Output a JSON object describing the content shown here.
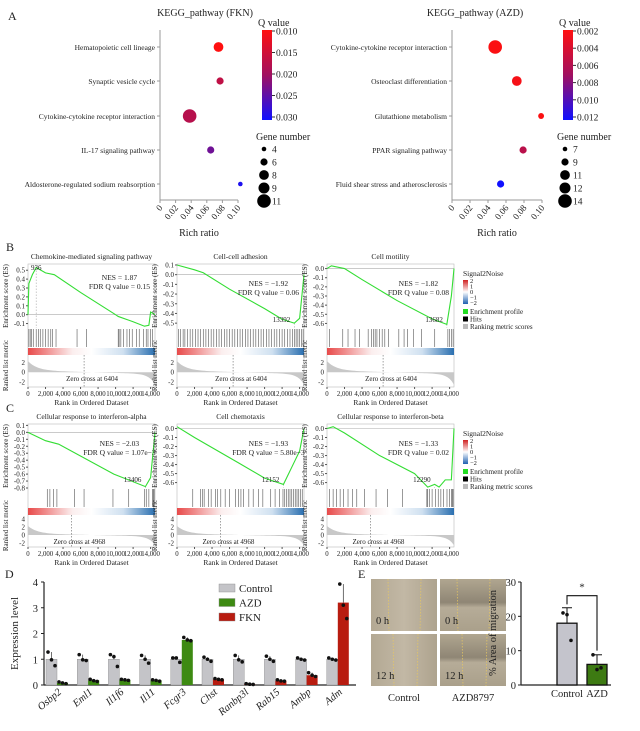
{
  "panel_labels": {
    "a": "A",
    "b": "B",
    "c": "C",
    "d": "D",
    "e": "E"
  },
  "chart_data": [
    {
      "id": "kegg_fkn",
      "type": "scatter",
      "title": "KEGG_pathway (FKN)",
      "xlabel": "Rich ratio",
      "xlim": [
        0,
        0.1
      ],
      "xticks": [
        "0",
        "0.02",
        "0.04",
        "0.06",
        "0.08",
        "0.10"
      ],
      "categories": [
        "Hematopoietic cell lineage",
        "Synaptic vesicle cycle",
        "Cytokine-cytokine receptor interaction",
        "IL-17 signaling pathway",
        "Aldosterone-regulated sodium reabsorption"
      ],
      "rich_ratio": [
        0.075,
        0.077,
        0.038,
        0.065,
        0.103
      ],
      "q_value": [
        0.01,
        0.017,
        0.018,
        0.024,
        0.03
      ],
      "gene_number": [
        8,
        6,
        11,
        6,
        4
      ],
      "colorbar": {
        "title": "Q value",
        "ticks": [
          "0.010",
          "0.015",
          "0.020",
          "0.025",
          "0.030"
        ],
        "range": [
          0.01,
          0.031
        ],
        "low_color": "#ff1a1a",
        "high_color": "#1a1aff"
      },
      "size_legend": {
        "title": "Gene number",
        "values": [
          "4",
          "6",
          "8",
          "9",
          "11"
        ]
      }
    },
    {
      "id": "kegg_azd",
      "type": "scatter",
      "title": "KEGG_pathway (AZD)",
      "xlabel": "Rich ratio",
      "xlim": [
        0,
        0.1
      ],
      "xticks": [
        "0",
        "0.02",
        "0.04",
        "0.06",
        "0.08",
        "0.10"
      ],
      "categories": [
        "Cytokine-cytokine receptor interaction",
        "Osteoclast differentiation",
        "Glutathione metabolism",
        "PPAR signaling pathway",
        "Fluid shear stress and atherosclerosis"
      ],
      "rich_ratio": [
        0.048,
        0.072,
        0.099,
        0.079,
        0.054
      ],
      "q_value": [
        0.0012,
        0.0015,
        0.0012,
        0.005,
        0.012
      ],
      "gene_number": [
        14,
        11,
        8,
        9,
        9
      ],
      "colorbar": {
        "title": "Q value",
        "ticks": [
          "0.002",
          "0.004",
          "0.006",
          "0.008",
          "0.010",
          "0.012"
        ],
        "range": [
          0.001,
          0.012
        ],
        "low_color": "#ff1a1a",
        "high_color": "#1a1aff"
      },
      "size_legend": {
        "title": "Gene number",
        "values": [
          "7",
          "9",
          "11",
          "12",
          "14"
        ]
      }
    },
    {
      "id": "gsea_b1",
      "type": "line",
      "title": "Chemokine-mediated signaling pathway",
      "ylabel": "Enrichment score (ES)",
      "ylabel2": "Ranked list metric",
      "xlabel": "Rank in Ordered Dataset",
      "nes": "NES = 1.87",
      "fdr": "FDR Q value = 0.15",
      "peak_label": "936",
      "peak_rank": 936,
      "zero_cross": "Zero cross at 6404",
      "zero_cross_rank": 6404,
      "ylim": [
        -0.15,
        0.57
      ],
      "yticks": [
        "0.5",
        "0.4",
        "0.3",
        "0.2",
        "0.1",
        "0.0",
        "-0.1"
      ],
      "metric_ticks": [
        "2",
        "0",
        "-2"
      ],
      "metric_lim": [
        -3,
        3.5
      ],
      "xticks": [
        "0",
        "2,000",
        "4,000",
        "6,000",
        "8,000",
        "10,000",
        "12,000",
        "14,000"
      ],
      "curve": [
        [
          0,
          0
        ],
        [
          100,
          0.35
        ],
        [
          500,
          0.45
        ],
        [
          936,
          0.53
        ],
        [
          2000,
          0.47
        ],
        [
          3000,
          0.45
        ],
        [
          6000,
          0.25
        ],
        [
          10000,
          0.0
        ],
        [
          10300,
          -0.02
        ],
        [
          12000,
          -0.08
        ],
        [
          13300,
          -0.13
        ],
        [
          13800,
          -0.12
        ],
        [
          14000,
          0.03
        ],
        [
          14500,
          0.0
        ]
      ],
      "hits": [
        100,
        250,
        400,
        600,
        936,
        1200,
        1400,
        1700,
        2000,
        2300,
        2600,
        2800,
        3200,
        5600,
        6700,
        10300,
        10400,
        10600,
        10900,
        11300,
        11600,
        11900,
        12400,
        12700,
        13200,
        13500,
        13700,
        14000,
        14200
      ]
    },
    {
      "id": "gsea_b2",
      "type": "line",
      "title": "Cell-cell adhesion",
      "ylabel": "Enrichment score (ES)",
      "ylabel2": "Ranked list metric",
      "xlabel": "Rank in Ordered Dataset",
      "nes": "NES = −1.92",
      "fdr": "FDR Q value = 0.06",
      "peak_label": "13392",
      "peak_rank": 13392,
      "zero_cross": "Zero cross at 6404",
      "zero_cross_rank": 6404,
      "ylim": [
        -0.55,
        0.11
      ],
      "yticks": [
        "0.1",
        "0.0",
        "-0.1",
        "-0.2",
        "-0.3",
        "-0.4",
        "-0.5"
      ],
      "metric_ticks": [
        "2",
        "0",
        "-2"
      ],
      "metric_lim": [
        -3,
        3.5
      ],
      "xticks": [
        "0",
        "2,000",
        "4,000",
        "6,000",
        "8,000",
        "10,000",
        "12,000",
        "14,000"
      ],
      "curve": [
        [
          0,
          0.1
        ],
        [
          2000,
          0.05
        ],
        [
          3000,
          0.02
        ],
        [
          6000,
          -0.15
        ],
        [
          10000,
          -0.35
        ],
        [
          12000,
          -0.46
        ],
        [
          13392,
          -0.5
        ],
        [
          14000,
          -0.45
        ],
        [
          14500,
          0
        ]
      ],
      "hits": [
        150,
        400,
        700,
        900,
        1200,
        1500,
        1800,
        2100,
        2400,
        2700,
        3000,
        3300,
        3600,
        3900,
        4200,
        4500,
        4800,
        5100,
        5400,
        5700,
        6000,
        6300,
        6600,
        6900,
        7200,
        7500,
        7800,
        8100,
        8400,
        8700,
        9000,
        9300,
        9600,
        9900,
        10200,
        10500,
        10800,
        11100,
        11400,
        11700,
        12000,
        12300,
        12600,
        12900,
        13200,
        13400,
        13600,
        13800,
        14000,
        14200,
        14400
      ]
    },
    {
      "id": "gsea_b3",
      "type": "line",
      "title": "Cell motility",
      "ylabel": "Enrichment score (ES)",
      "ylabel2": "Ranked list metric",
      "xlabel": "Rank in Ordered Dataset",
      "nes": "NES = −1.82",
      "fdr": "FDR Q value = 0.08",
      "peak_label": "13682",
      "peak_rank": 13682,
      "zero_cross": "Zero cross at 6404",
      "zero_cross_rank": 6404,
      "ylim": [
        -0.65,
        0.05
      ],
      "yticks": [
        "0.0",
        "-0.1",
        "-0.2",
        "-0.3",
        "-0.4",
        "-0.5",
        "-0.6"
      ],
      "metric_ticks": [
        "2",
        "0",
        "-2"
      ],
      "metric_lim": [
        -3,
        3.5
      ],
      "xticks": [
        "0",
        "2,000",
        "4,000",
        "6,000",
        "8,000",
        "10,000",
        "12,000",
        "14,000"
      ],
      "curve": [
        [
          0,
          0
        ],
        [
          500,
          0.03
        ],
        [
          2000,
          0.0
        ],
        [
          4000,
          -0.12
        ],
        [
          8000,
          -0.35
        ],
        [
          12000,
          -0.55
        ],
        [
          13682,
          -0.61
        ],
        [
          14200,
          -0.3
        ],
        [
          14500,
          0
        ]
      ],
      "hits": [
        300,
        1800,
        2400,
        3200,
        3700,
        4700,
        5100,
        5300,
        5500,
        5700,
        6000,
        6300,
        6600,
        7000,
        8200,
        8800,
        9200,
        9900,
        10800,
        12300,
        13800,
        14000,
        14200,
        14400
      ]
    },
    {
      "id": "gsea_c1",
      "type": "line",
      "title": "Cellular response to interferon-alpha",
      "ylabel": "Enrichment score (ES)",
      "ylabel2": "Ranked list metric",
      "xlabel": "Rank in Ordered Dataset",
      "nes": "NES = −2.03",
      "fdr": "FDR Q value = 1.07e−3",
      "peak_label": "13406",
      "peak_rank": 13406,
      "zero_cross": "Zero cross at 4968",
      "zero_cross_rank": 4968,
      "ylim": [
        -0.8,
        0.12
      ],
      "yticks": [
        "0.1",
        "0.0",
        "-0.1",
        "-0.2",
        "-0.3",
        "-0.4",
        "-0.5",
        "-0.6",
        "-0.7",
        "-0.8"
      ],
      "metric_ticks": [
        "4",
        "2",
        "0",
        "-2"
      ],
      "metric_lim": [
        -3,
        5
      ],
      "xticks": [
        "0",
        "2,000",
        "4,000",
        "6,000",
        "8,000",
        "10,000",
        "12,000",
        "14,000"
      ],
      "curve": [
        [
          0,
          0
        ],
        [
          2000,
          -0.12
        ],
        [
          3500,
          -0.17
        ],
        [
          9800,
          -0.6
        ],
        [
          13406,
          -0.78
        ],
        [
          14000,
          -0.65
        ],
        [
          14500,
          0
        ]
      ],
      "hits": [
        2200,
        2500,
        2900,
        3300,
        5300,
        6400,
        9700,
        11500,
        13300,
        13500,
        13800,
        14200,
        14300,
        14400
      ]
    },
    {
      "id": "gsea_c2",
      "type": "line",
      "title": "Cell chemotaxis",
      "ylabel": "Enrichment score (ES)",
      "ylabel2": "Ranked list metric",
      "xlabel": "Rank in Ordered Dataset",
      "nes": "NES = −1.93",
      "fdr": "FDR Q value = 5.80e−3",
      "peak_label": "12152",
      "peak_rank": 12152,
      "zero_cross": "Zero cross at 4968",
      "zero_cross_rank": 4968,
      "ylim": [
        -0.66,
        0.05
      ],
      "yticks": [
        "0.0",
        "-0.1",
        "-0.2",
        "-0.3",
        "-0.4",
        "-0.5",
        "-0.6"
      ],
      "metric_ticks": [
        "4",
        "2",
        "0",
        "-2"
      ],
      "metric_lim": [
        -3,
        5
      ],
      "xticks": [
        "0",
        "2,000",
        "4,000",
        "6,000",
        "8,000",
        "10,000",
        "12,000",
        "14,000"
      ],
      "curve": [
        [
          0,
          0.02
        ],
        [
          2000,
          -0.1
        ],
        [
          7000,
          -0.38
        ],
        [
          10000,
          -0.55
        ],
        [
          12152,
          -0.62
        ],
        [
          12500,
          -0.55
        ],
        [
          13500,
          -0.35
        ],
        [
          14000,
          -0.25
        ],
        [
          14500,
          0
        ]
      ],
      "hits": [
        1800,
        2700,
        2900,
        3100,
        3600,
        3900,
        4400,
        4600,
        5000,
        5500,
        6000,
        6700,
        7000,
        7300,
        7600,
        8200,
        8700,
        9300,
        9800,
        10700,
        11200,
        11700,
        12100,
        12300,
        12500,
        12700,
        12900,
        13100,
        13300,
        13500,
        13700,
        13900,
        14100,
        14300
      ]
    },
    {
      "id": "gsea_c3",
      "type": "line",
      "title": "Cellular response to interferon-beta",
      "ylabel": "Enrichment score (ES)",
      "ylabel2": "Ranked list metric",
      "xlabel": "Rank in Ordered Dataset",
      "nes": "NES = −1.33",
      "fdr": "FDR Q value = 0.02",
      "peak_label": "12290",
      "peak_rank": 12290,
      "zero_cross": "Zero cross at 4968",
      "zero_cross_rank": 4968,
      "ylim": [
        -0.66,
        0.05
      ],
      "yticks": [
        "0.0",
        "-0.1",
        "-0.2",
        "-0.3",
        "-0.4",
        "-0.5",
        "-0.6"
      ],
      "metric_ticks": [
        "4",
        "2",
        "0",
        "-2"
      ],
      "metric_lim": [
        -3,
        5
      ],
      "xticks": [
        "0",
        "2,000",
        "4,000",
        "6,000",
        "8,000",
        "10,000",
        "12,000",
        "14,000"
      ],
      "curve": [
        [
          0,
          0
        ],
        [
          700,
          0.02
        ],
        [
          2000,
          -0.05
        ],
        [
          6000,
          -0.3
        ],
        [
          10000,
          -0.5
        ],
        [
          11500,
          -0.65
        ],
        [
          12290,
          -0.62
        ],
        [
          12800,
          -0.65
        ],
        [
          13500,
          -0.57
        ],
        [
          14200,
          -0.57
        ],
        [
          14500,
          0
        ]
      ],
      "hits": [
        300,
        700,
        1100,
        1500,
        1900,
        2400,
        2900,
        3400,
        4300,
        5600,
        6900,
        8600,
        11400,
        11500,
        11700,
        12000,
        12400,
        12700,
        13000,
        13300,
        13700,
        14000,
        14200,
        14300,
        14400
      ]
    },
    {
      "id": "expression",
      "type": "bar",
      "ylabel": "Expression level",
      "ylim": [
        0,
        4
      ],
      "yticks": [
        "0",
        "1",
        "2",
        "3",
        "4"
      ],
      "categories": [
        "Osbp2",
        "Eml1",
        "Il1f6",
        "Il11",
        "Fcgr3",
        "Chst",
        "Ranbp3l",
        "Rab15",
        "Ambp",
        "Adm"
      ],
      "legend": [
        {
          "name": "Control",
          "color": "#c4c4c8"
        },
        {
          "name": "AZD",
          "color": "#3d8a12"
        },
        {
          "name": "FKN",
          "color": "#b81c10"
        }
      ],
      "control": [
        1.0,
        1.0,
        1.0,
        1.0,
        1.0,
        1.0,
        1.0,
        1.0,
        1.0,
        1.0
      ],
      "control_points": [
        [
          1.28,
          0.98,
          0.75
        ],
        [
          1.18,
          0.98,
          0.95
        ],
        [
          1.18,
          1.1,
          0.72
        ],
        [
          1.15,
          1.0,
          0.85
        ],
        [
          1.05,
          1.05,
          0.88
        ],
        [
          1.08,
          1.0,
          0.92
        ],
        [
          1.15,
          0.98,
          0.9
        ],
        [
          1.12,
          1.0,
          0.92
        ],
        [
          1.05,
          1.0,
          0.97
        ],
        [
          1.05,
          1.0,
          0.97
        ]
      ],
      "treatment_group": [
        "AZD",
        "AZD",
        "AZD",
        "AZD",
        "AZD",
        "FKN",
        "FKN",
        "FKN",
        "FKN",
        "FKN"
      ],
      "treatment": [
        0.08,
        0.18,
        0.2,
        0.18,
        1.75,
        0.22,
        0.03,
        0.17,
        0.38,
        3.2
      ],
      "treatment_points": [
        [
          0.12,
          0.08,
          0.05
        ],
        [
          0.22,
          0.17,
          0.14
        ],
        [
          0.22,
          0.2,
          0.18
        ],
        [
          0.2,
          0.18,
          0.15
        ],
        [
          1.85,
          1.75,
          1.72
        ],
        [
          0.25,
          0.22,
          0.2
        ],
        [
          0.05,
          0.03,
          0.02
        ],
        [
          0.2,
          0.16,
          0.15
        ],
        [
          0.48,
          0.38,
          0.33
        ],
        [
          3.92,
          3.1,
          2.58
        ]
      ]
    },
    {
      "id": "migration",
      "type": "bar",
      "ylabel": "% Area of migration",
      "ylim": [
        0,
        30
      ],
      "yticks": [
        "0",
        "10",
        "20",
        "30"
      ],
      "categories": [
        "Control",
        "AZD"
      ],
      "values": [
        18,
        6
      ],
      "errors": [
        4.5,
        2.8
      ],
      "colors": [
        "#c4c4cc",
        "#3d7a12"
      ],
      "points": [
        [
          21,
          20.5,
          13
        ],
        [
          8.8,
          4.5,
          5
        ]
      ],
      "significance": "*"
    }
  ],
  "scratch_assay": {
    "columns": [
      "Control",
      "AZD8797"
    ],
    "rows": [
      "0 h",
      "12 h"
    ]
  },
  "gsea_legend": {
    "title": "Signal2Noise",
    "ticks": [
      "2",
      "1",
      "0",
      "−1",
      "−2"
    ],
    "items": [
      {
        "label": "Enrichment profile",
        "color": "#22dd22"
      },
      {
        "label": "Hits",
        "color": "#000000"
      },
      {
        "label": "Ranking metric scores",
        "color": "#bbbbbb"
      }
    ]
  }
}
